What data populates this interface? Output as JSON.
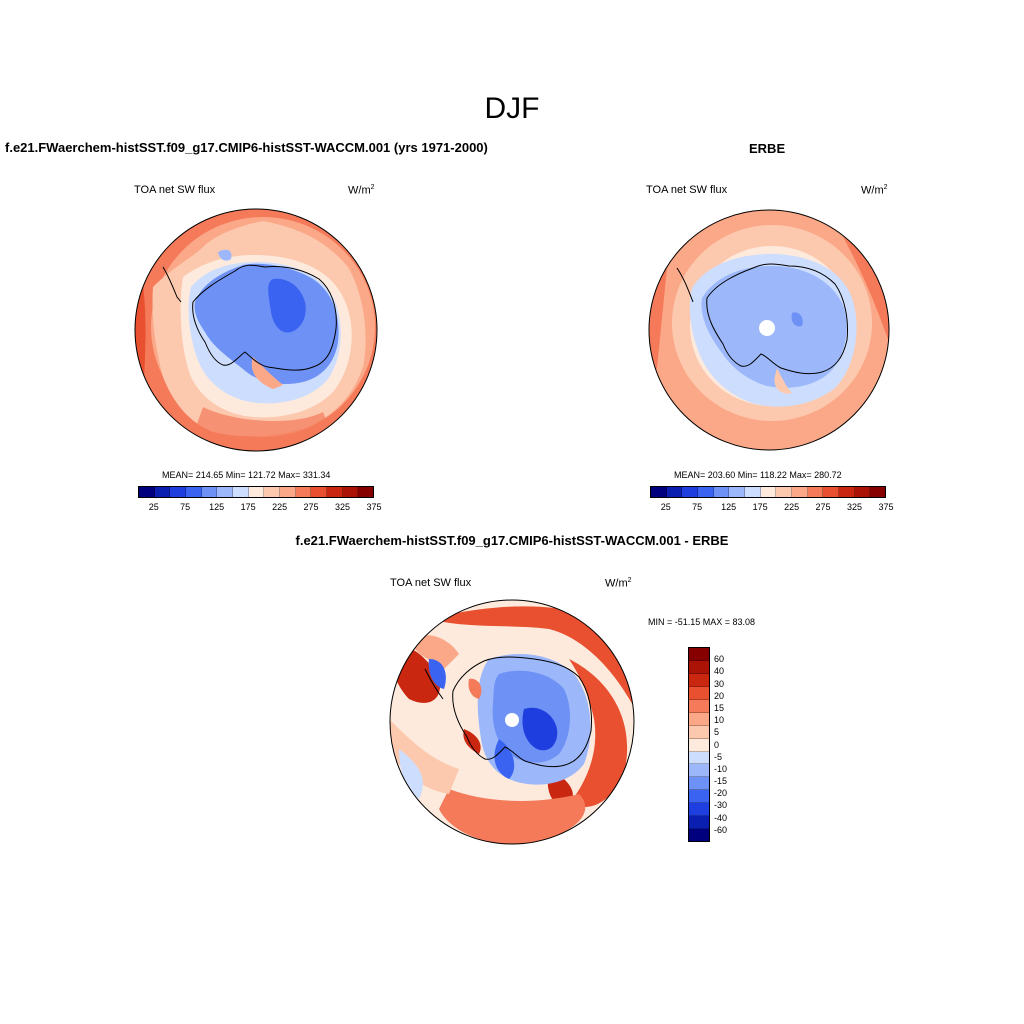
{
  "main_title": "DJF",
  "panels": [
    {
      "title": "f.e21.FWaerchem-histSST.f09_g17.CMIP6-histSST-WACCM.001 (yrs 1971-2000)",
      "variable": "TOA net SW flux",
      "units_base": "W/m",
      "units_exp": "2",
      "stats": "MEAN= 214.65  Min= 121.72  Max= 331.34",
      "colorbar_labels": [
        "25",
        "75",
        "125",
        "175",
        "225",
        "275",
        "325",
        "375"
      ]
    },
    {
      "title": "ERBE",
      "variable": "TOA net SW flux",
      "units_base": "W/m",
      "units_exp": "2",
      "stats": "MEAN= 203.60  Min= 118.22  Max= 280.72",
      "colorbar_labels": [
        "25",
        "75",
        "125",
        "175",
        "225",
        "275",
        "325",
        "375"
      ]
    }
  ],
  "diff": {
    "title": "f.e21.FWaerchem-histSST.f09_g17.CMIP6-histSST-WACCM.001 - ERBE",
    "variable": "TOA net SW flux",
    "units_base": "W/m",
    "units_exp": "2",
    "minmax": "MIN = -51.15 MAX =  83.08",
    "colorbar_labels": [
      "60",
      "40",
      "30",
      "20",
      "15",
      "10",
      "5",
      "0",
      "-5",
      "-10",
      "-15",
      "-20",
      "-30",
      "-40",
      "-60"
    ]
  },
  "colors": {
    "main_scale": [
      "#00007f",
      "#0a1fb0",
      "#1e3ee0",
      "#3a63f2",
      "#6e91f5",
      "#9db8fa",
      "#cdddfd",
      "#fdeadd",
      "#fcc9ae",
      "#fba888",
      "#f47a5a",
      "#e8502f",
      "#c9270f",
      "#aa1305",
      "#860000"
    ],
    "diff_scale": [
      "#860000",
      "#aa1305",
      "#c9270f",
      "#e8502f",
      "#f47a5a",
      "#fba888",
      "#fcc9ae",
      "#fdeadd",
      "#cdddfd",
      "#9db8fa",
      "#6e91f5",
      "#3a63f2",
      "#1e3ee0",
      "#0a1fb0",
      "#00007f"
    ]
  }
}
